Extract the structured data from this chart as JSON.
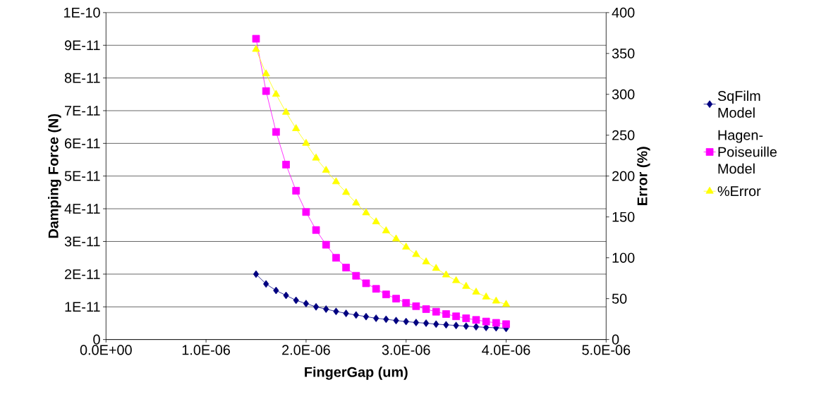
{
  "chart_data": {
    "type": "line",
    "xlabel": "FingerGap (um)",
    "ylabel": "Damping Force (N)",
    "y2label": "Error (%)",
    "x": [
      1.5e-06,
      1.6e-06,
      1.7e-06,
      1.8e-06,
      1.9e-06,
      2e-06,
      2.1e-06,
      2.2e-06,
      2.3e-06,
      2.4e-06,
      2.5e-06,
      2.6e-06,
      2.7e-06,
      2.8e-06,
      2.9e-06,
      3e-06,
      3.1e-06,
      3.2e-06,
      3.3e-06,
      3.4e-06,
      3.5e-06,
      3.6e-06,
      3.7e-06,
      3.8e-06,
      3.9e-06,
      4e-06
    ],
    "series": [
      {
        "name": "SqFilm Model",
        "color": "#000080",
        "marker": "diamond",
        "values": [
          2e-11,
          1.7e-11,
          1.5e-11,
          1.35e-11,
          1.2e-11,
          1.1e-11,
          1e-11,
          9.3e-12,
          8.6e-12,
          8e-12,
          7.5e-12,
          7e-12,
          6.5e-12,
          6.2e-12,
          5.8e-12,
          5.5e-12,
          5.2e-12,
          5e-12,
          4.7e-12,
          4.5e-12,
          4.3e-12,
          4.1e-12,
          3.9e-12,
          3.7e-12,
          3.6e-12,
          3.4e-12
        ]
      },
      {
        "name": "Hagen-Poiseuille Model",
        "color": "#ff00ff",
        "marker": "square",
        "values": [
          9.2e-11,
          7.6e-11,
          6.35e-11,
          5.35e-11,
          4.55e-11,
          3.9e-11,
          3.35e-11,
          2.9e-11,
          2.5e-11,
          2.2e-11,
          1.95e-11,
          1.72e-11,
          1.55e-11,
          1.38e-11,
          1.25e-11,
          1.12e-11,
          1.02e-11,
          9.3e-12,
          8.5e-12,
          7.8e-12,
          7.1e-12,
          6.5e-12,
          6e-12,
          5.5e-12,
          5.1e-12,
          4.7e-12
        ]
      },
      {
        "name": "%Error",
        "color": "#ffff00",
        "marker": "triangle",
        "axis": "y2",
        "values": [
          355,
          325,
          300,
          278,
          258,
          240,
          222,
          207,
          193,
          180,
          167,
          155,
          144,
          133,
          123,
          113,
          104,
          95,
          87,
          79,
          72,
          65,
          58,
          52,
          47,
          43
        ]
      }
    ],
    "xlim": [
      0,
      5e-06
    ],
    "xticks": [
      {
        "value": 0,
        "label": "0.0E+00"
      },
      {
        "value": 1e-06,
        "label": "1.0E-06"
      },
      {
        "value": 2e-06,
        "label": "2.0E-06"
      },
      {
        "value": 3e-06,
        "label": "3.0E-06"
      },
      {
        "value": 4e-06,
        "label": "4.0E-06"
      },
      {
        "value": 5e-06,
        "label": "5.0E-06"
      }
    ],
    "ylim": [
      0,
      1e-10
    ],
    "yticks": [
      0,
      {
        "value": 1e-11,
        "label": "1E-11"
      },
      {
        "value": 2e-11,
        "label": "2E-11"
      },
      {
        "value": 3e-11,
        "label": "3E-11"
      },
      {
        "value": 4e-11,
        "label": "4E-11"
      },
      {
        "value": 5e-11,
        "label": "5E-11"
      },
      {
        "value": 6e-11,
        "label": "6E-11"
      },
      {
        "value": 7e-11,
        "label": "7E-11"
      },
      {
        "value": 8e-11,
        "label": "8E-11"
      },
      {
        "value": 9e-11,
        "label": "9E-11"
      },
      {
        "value": 1e-10,
        "label": "1E-10"
      }
    ],
    "y2lim": [
      0,
      400
    ],
    "y2ticks": [
      0,
      50,
      100,
      150,
      200,
      250,
      300,
      350,
      400
    ],
    "grid": "y",
    "legend": "right",
    "line_style": "solid"
  }
}
